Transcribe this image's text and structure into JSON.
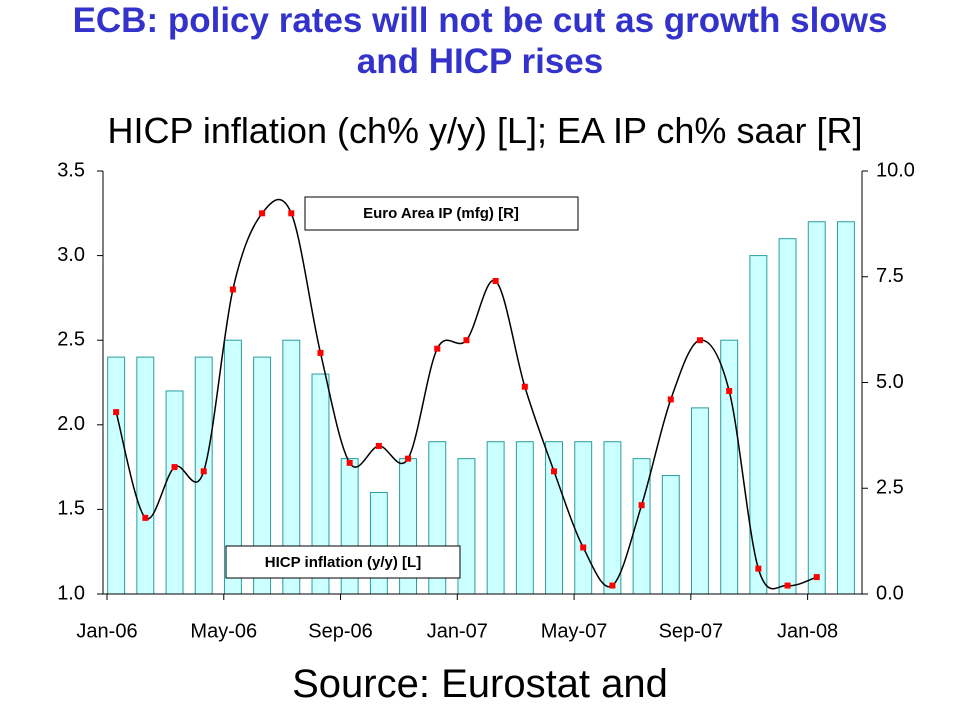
{
  "chart_data": {
    "type": "bar_line",
    "title": "ECB: policy rates will not be cut as growth slows and HICP rises",
    "subtitle": "HICP inflation (ch% y/y) [L]; EA IP ch% saar [R]",
    "source": "Source: Eurostat and",
    "categories": [
      "Jan-06",
      null,
      null,
      null,
      "May-06",
      null,
      null,
      null,
      "Sep-06",
      null,
      null,
      null,
      "Jan-07",
      null,
      null,
      null,
      "May-07",
      null,
      null,
      null,
      "Sep-07",
      null,
      null,
      null,
      "Jan-08",
      null
    ],
    "series": [
      {
        "name": "HICP inflation (y/y)  [L]",
        "type": "bar",
        "color": "#ccffff",
        "edge": "#2a9d9d",
        "values": [
          2.4,
          2.4,
          2.2,
          2.4,
          2.5,
          2.4,
          2.5,
          2.3,
          1.8,
          1.6,
          1.8,
          1.9,
          1.8,
          1.9,
          1.9,
          1.9,
          1.9,
          1.9,
          1.8,
          1.7,
          2.1,
          2.5,
          3.0,
          3.1,
          3.2,
          3.2
        ]
      },
      {
        "name": "Euro Area IP (mfg) [R]",
        "type": "line",
        "axis": "y2",
        "color": "#000000",
        "marker_color": "#ff0000",
        "values": [
          4.3,
          1.8,
          3.0,
          2.9,
          7.2,
          9.0,
          9.0,
          5.7,
          3.1,
          3.5,
          3.2,
          5.8,
          6.0,
          7.4,
          4.9,
          2.9,
          1.1,
          0.2,
          2.1,
          4.6,
          6.0,
          4.8,
          0.6,
          0.2,
          0.4,
          null
        ]
      }
    ],
    "ylim": [
      1.0,
      3.5
    ],
    "yticks": [
      {
        "value": 1.0,
        "label": "1.0"
      },
      1.5,
      {
        "value": 2.0,
        "label": "2.0"
      },
      2.5,
      {
        "value": 3.0,
        "label": "3.0"
      },
      3.5
    ],
    "y2lim": [
      0.0,
      10.0
    ],
    "y2ticks": [
      {
        "value": 0.0,
        "label": "0.0"
      },
      2.5,
      {
        "value": 5.0,
        "label": "5.0"
      },
      7.5,
      {
        "value": 10.0,
        "label": "10.0"
      }
    ],
    "grid": false
  }
}
